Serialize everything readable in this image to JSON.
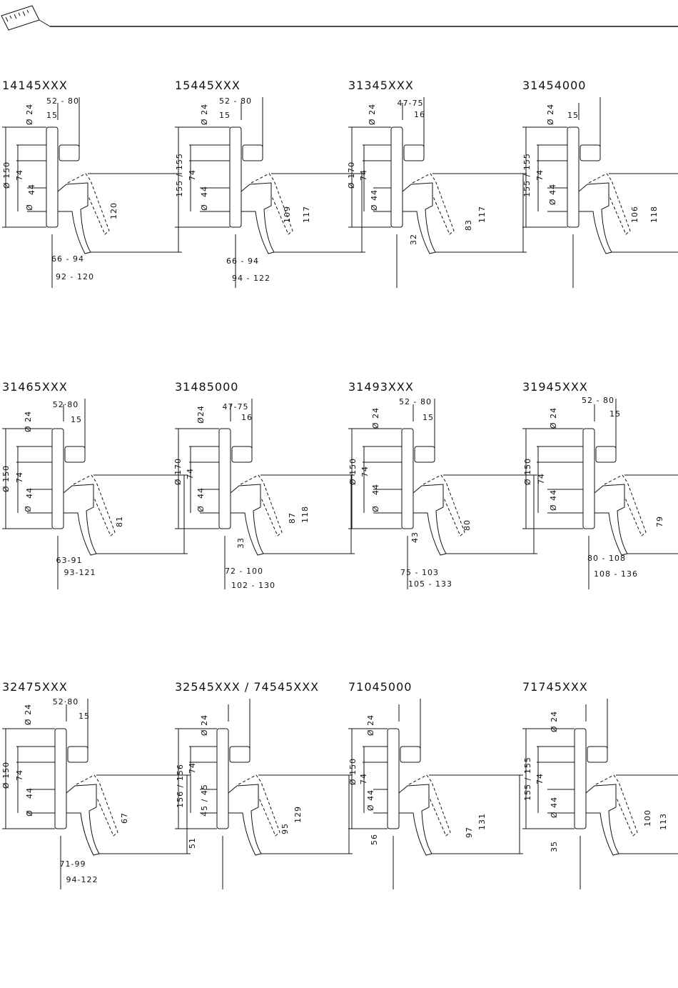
{
  "panels": [
    {
      "model": "14145XXX",
      "dimensions": [
        "52 - 80",
        "15",
        "Ø 24",
        "Ø 150",
        "74",
        "44",
        "Ø",
        "120",
        "66 - 94",
        "92 - 120"
      ]
    },
    {
      "model": "15445XXX",
      "dimensions": [
        "52 - 80",
        "15",
        "Ø 24",
        "155 / 155",
        "74",
        "44",
        "Ø",
        "109",
        "117",
        "66 - 94",
        "94 - 122"
      ]
    },
    {
      "model": "31345XXX",
      "dimensions": [
        "47-75",
        "16",
        "Ø 24",
        "Ø 170",
        "74",
        "Ø 44",
        "32",
        "83",
        "117"
      ]
    },
    {
      "model": "31454000",
      "dimensions": [
        "Ø 24",
        "15",
        "155 / 155",
        "74",
        "Ø 44",
        "106",
        "118"
      ]
    },
    {
      "model": "31465XXX",
      "dimensions": [
        "52·80",
        "15",
        "Ø 24",
        "Ø 150",
        "74",
        "44",
        "Ø",
        "81",
        "63-91",
        "93-121"
      ]
    },
    {
      "model": "31485000",
      "dimensions": [
        "Ø24",
        "47-75",
        "16",
        "Ø 170",
        "74",
        "44",
        "Ø",
        "33",
        "87",
        "118",
        "72 - 100",
        "102 - 130"
      ]
    },
    {
      "model": "31493XXX",
      "dimensions": [
        "52 - 80",
        "15",
        "Ø 24",
        "Ø 150",
        "74",
        "44",
        "Ø",
        "43",
        "80",
        "75 - 103",
        "105 - 133"
      ]
    },
    {
      "model": "31945XXX",
      "dimensions": [
        "52 - 80",
        "15",
        "Ø 24",
        "Ø 150",
        "74",
        "Ø 44",
        "79",
        "80 - 108",
        "108 - 136"
      ]
    },
    {
      "model": "32475XXX",
      "dimensions": [
        "52·80",
        "15",
        "Ø 24",
        "Ø 150",
        "74",
        "44",
        "Ø",
        "67",
        "71-99",
        "94-122"
      ]
    },
    {
      "model": "32545XXX / 74545XXX",
      "dimensions": [
        "Ø 24",
        "156 / 156",
        "74",
        "45 / 45",
        "51",
        "95",
        "129"
      ]
    },
    {
      "model": "71045000",
      "dimensions": [
        "Ø 24",
        "Ø 150",
        "74",
        "Ø 44",
        "56",
        "97",
        "131"
      ]
    },
    {
      "model": "71745XXX",
      "dimensions": [
        "Ø 24",
        "155 / 155",
        "74",
        "Ø 44",
        "35",
        "100",
        "113"
      ]
    }
  ]
}
